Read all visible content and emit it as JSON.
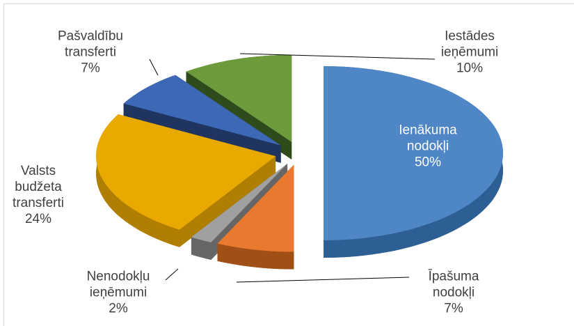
{
  "chart_data": {
    "type": "pie3d",
    "categories": [
      "Ienākuma nodokļi",
      "Īpašuma nodokļi",
      "Nenodokļu ieņēmumi",
      "Valsts budžeta transferti",
      "Pašvaldību transferti",
      "Iestādes ieņēmumi"
    ],
    "values": [
      50,
      7,
      2,
      24,
      7,
      10
    ],
    "value_labels": [
      "50%",
      "7%",
      "2%",
      "24%",
      "7%",
      "10%"
    ],
    "colors": [
      "#4f86c6",
      "#e8792f",
      "#a0a0a0",
      "#e8a900",
      "#3c68b5",
      "#6d9b3b"
    ],
    "side_colors": [
      "#2e5f94",
      "#a04f17",
      "#666666",
      "#b07e00",
      "#1f3560",
      "#2f4a1b"
    ]
  }
}
